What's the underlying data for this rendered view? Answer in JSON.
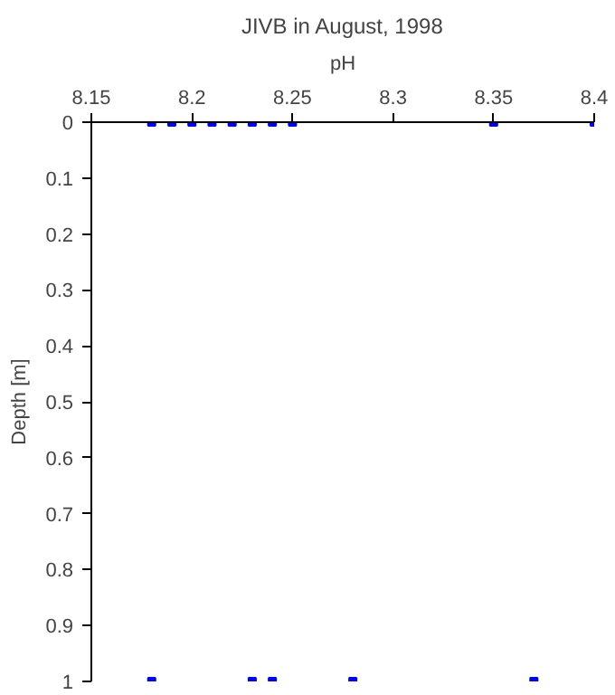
{
  "chart_data": {
    "type": "scatter",
    "title": "JIVB in August, 1998",
    "xlabel": "pH",
    "ylabel": "Depth [m]",
    "series": [
      {
        "color": "#0000ff",
        "x": [
          8.18,
          8.19,
          8.2,
          8.21,
          8.22,
          8.23,
          8.24,
          8.25,
          8.35,
          8.4,
          8.18,
          8.23,
          8.24,
          8.28,
          8.37
        ],
        "values": [
          0,
          0,
          0,
          0,
          0,
          0,
          0,
          0,
          0,
          0,
          1,
          1,
          1,
          1,
          1
        ]
      }
    ],
    "xlim": [
      8.15,
      8.4
    ],
    "xticks": [
      8.15,
      8.2,
      8.25,
      8.3,
      8.35,
      8.4
    ],
    "ylim": [
      1,
      0
    ],
    "yticks": [
      0,
      0.1,
      0.2,
      0.3,
      0.4,
      0.5,
      0.6,
      0.7,
      0.8,
      0.9,
      1
    ],
    "marker": "square",
    "grid": false
  }
}
